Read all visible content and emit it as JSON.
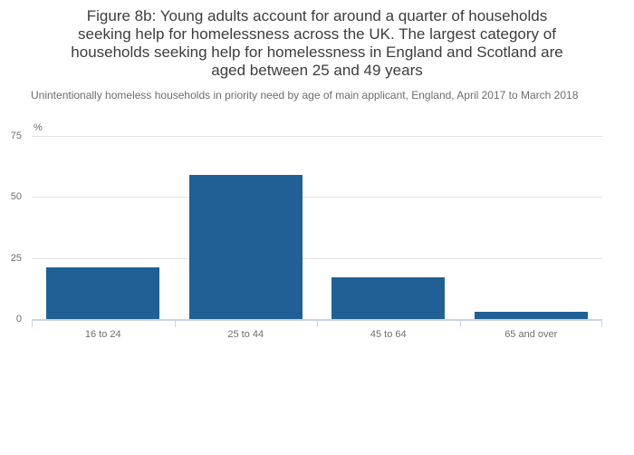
{
  "chart_data": {
    "type": "bar",
    "title": "Figure 8b: Young adults account for around a quarter of households seeking help for homelessness across the UK. The largest category of households seeking help for homelessness in England and Scotland are aged between 25 and 49 years",
    "title_lines": [
      "Figure 8b: Young adults account for around a quarter of households",
      "seeking help for homelessness across the UK. The largest category of",
      "households seeking help for homelessness in England and Scotland are",
      "aged between 25 and 49 years"
    ],
    "subtitle": "Unintentionally homeless households in priority need by age of main applicant, England, April 2017 to March 2018",
    "categories": [
      "16 to 24",
      "25 to 44",
      "45 to 64",
      "65 and over"
    ],
    "values": [
      21,
      59,
      17,
      3
    ],
    "unit_label": "%",
    "ylabel": "%",
    "xlabel": "",
    "ylim": [
      0,
      75
    ],
    "yticks": [
      0,
      25,
      50,
      75
    ],
    "grid": true,
    "legend": "none",
    "colors": {
      "bar": "#206095",
      "gridline": "#e3e3e3",
      "axis": "#c9d4e3",
      "title_text": "#3d3d3d",
      "subtitle_text": "#6d6d6d",
      "tick_text": "#6e6e6e"
    }
  }
}
